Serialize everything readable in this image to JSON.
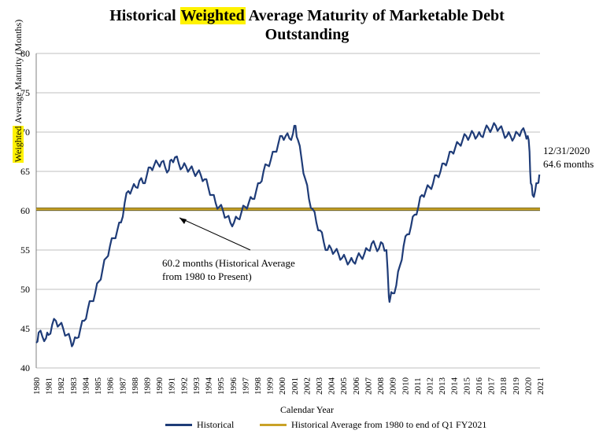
{
  "title": {
    "part1": "Historical ",
    "highlight": "Weighted",
    "part2": " Average Maturity of Marketable Debt",
    "line2": "Outstanding"
  },
  "ylabel": {
    "highlight": "Weighted",
    "rest": " Average Maturity (Months)"
  },
  "xlabel": "Calendar Year",
  "annotations": {
    "avg_line1": "60.2 months (Historical Average",
    "avg_line2": "from 1980 to Present)",
    "end_line1": "12/31/2020",
    "end_line2": "64.6 months"
  },
  "legend": {
    "historical": "Historical",
    "average": "Historical Average from 1980 to end of Q1 FY2021"
  },
  "colors": {
    "historical": "#1f3c78",
    "average": "#c9a227",
    "grid": "#bfbfbf",
    "highlight": "#fff200"
  },
  "chart_data": {
    "type": "line",
    "xlabel": "Calendar Year",
    "ylabel": "Weighted Average Maturity (Months)",
    "ylim": [
      40,
      80
    ],
    "xlim": [
      1980,
      2021
    ],
    "yticks": [
      "40",
      "45",
      "50",
      "55",
      "60",
      "65",
      "70",
      "75",
      "80"
    ],
    "xticks": [
      "1980",
      "1981",
      "1982",
      "1983",
      "1984",
      "1985",
      "1986",
      "1987",
      "1988",
      "1989",
      "1990",
      "1991",
      "1992",
      "1993",
      "1994",
      "1995",
      "1996",
      "1997",
      "1998",
      "1999",
      "2000",
      "2001",
      "2002",
      "2003",
      "2004",
      "2005",
      "2006",
      "2007",
      "2008",
      "2009",
      "2010",
      "2011",
      "2012",
      "2013",
      "2014",
      "2015",
      "2016",
      "2017",
      "2018",
      "2019",
      "2020",
      "2021"
    ],
    "grid": true,
    "legend_position": "bottom",
    "series": [
      {
        "name": "Historical",
        "x": [
          1980.0,
          1980.2,
          1980.5,
          1980.8,
          1981.0,
          1981.3,
          1981.6,
          1981.9,
          1982.2,
          1982.5,
          1982.8,
          1983.0,
          1983.3,
          1983.6,
          1983.9,
          1984.2,
          1984.5,
          1984.8,
          1985.1,
          1985.4,
          1985.7,
          1986.0,
          1986.3,
          1986.6,
          1986.9,
          1987.2,
          1987.5,
          1987.8,
          1988.1,
          1988.4,
          1988.7,
          1989.0,
          1989.3,
          1989.6,
          1989.9,
          1990.2,
          1990.5,
          1990.8,
          1991.0,
          1991.3,
          1991.6,
          1991.9,
          1992.2,
          1992.5,
          1992.8,
          1993.1,
          1993.4,
          1993.7,
          1994.0,
          1994.3,
          1994.6,
          1994.9,
          1995.2,
          1995.5,
          1995.8,
          1996.1,
          1996.4,
          1996.7,
          1997.0,
          1997.3,
          1997.6,
          1997.9,
          1998.2,
          1998.5,
          1998.8,
          1999.1,
          1999.4,
          1999.7,
          2000.0,
          2000.3,
          2000.6,
          2000.9,
          2001.1,
          2001.3,
          2001.6,
          2001.9,
          2002.2,
          2002.5,
          2002.8,
          2003.1,
          2003.4,
          2003.7,
          2004.0,
          2004.3,
          2004.6,
          2004.9,
          2005.2,
          2005.5,
          2005.8,
          2006.1,
          2006.4,
          2006.7,
          2007.0,
          2007.3,
          2007.6,
          2007.9,
          2008.2,
          2008.5,
          2008.7,
          2008.8,
          2009.0,
          2009.3,
          2009.6,
          2009.9,
          2010.2,
          2010.5,
          2010.8,
          2011.1,
          2011.4,
          2011.7,
          2012.0,
          2012.3,
          2012.6,
          2012.9,
          2013.2,
          2013.5,
          2013.8,
          2014.1,
          2014.4,
          2014.7,
          2015.0,
          2015.3,
          2015.6,
          2015.9,
          2016.2,
          2016.5,
          2016.8,
          2017.1,
          2017.4,
          2017.7,
          2018.0,
          2018.3,
          2018.6,
          2018.9,
          2019.2,
          2019.5,
          2019.8,
          2020.0,
          2020.15,
          2020.25,
          2020.4,
          2020.6,
          2020.8,
          2020.95
        ],
        "values": [
          43.2,
          44.5,
          44.0,
          43.8,
          44.2,
          45.5,
          46.0,
          45.5,
          45.0,
          44.2,
          43.5,
          43.0,
          43.8,
          45.0,
          46.0,
          47.5,
          48.5,
          49.5,
          51.0,
          52.5,
          54.0,
          55.5,
          56.5,
          57.5,
          58.5,
          61.0,
          62.5,
          62.8,
          63.0,
          63.8,
          63.5,
          64.5,
          65.5,
          65.8,
          66.0,
          66.2,
          65.5,
          65.2,
          66.5,
          66.8,
          66.0,
          65.5,
          65.6,
          65.3,
          65.0,
          64.8,
          64.5,
          64.0,
          63.0,
          62.0,
          61.0,
          60.5,
          60.0,
          59.2,
          58.5,
          58.5,
          59.0,
          59.8,
          60.5,
          61.0,
          61.5,
          62.5,
          63.5,
          65.0,
          65.8,
          66.5,
          67.5,
          68.5,
          69.5,
          69.5,
          69.2,
          69.8,
          70.8,
          69.0,
          66.5,
          64.0,
          61.5,
          60.2,
          58.5,
          57.5,
          56.0,
          55.0,
          55.2,
          54.8,
          54.5,
          54.0,
          53.8,
          53.5,
          53.5,
          54.0,
          54.2,
          54.5,
          55.0,
          55.8,
          55.5,
          55.2,
          55.8,
          55.0,
          49.0,
          48.8,
          49.5,
          50.5,
          53.0,
          55.5,
          57.0,
          58.0,
          59.5,
          60.5,
          62.0,
          62.5,
          63.0,
          63.5,
          64.5,
          65.0,
          66.0,
          66.5,
          67.5,
          68.0,
          68.5,
          69.0,
          69.5,
          69.5,
          69.8,
          69.5,
          69.5,
          70.2,
          70.5,
          70.5,
          70.8,
          70.5,
          70.0,
          69.5,
          69.5,
          69.3,
          69.8,
          70.2,
          69.8,
          69.5,
          67.5,
          63.5,
          62.0,
          62.5,
          63.5,
          64.6
        ]
      },
      {
        "name": "Historical Average from 1980 to end of Q1 FY2021",
        "x": [
          1980,
          2021
        ],
        "values": [
          60.2,
          60.2
        ]
      }
    ]
  }
}
